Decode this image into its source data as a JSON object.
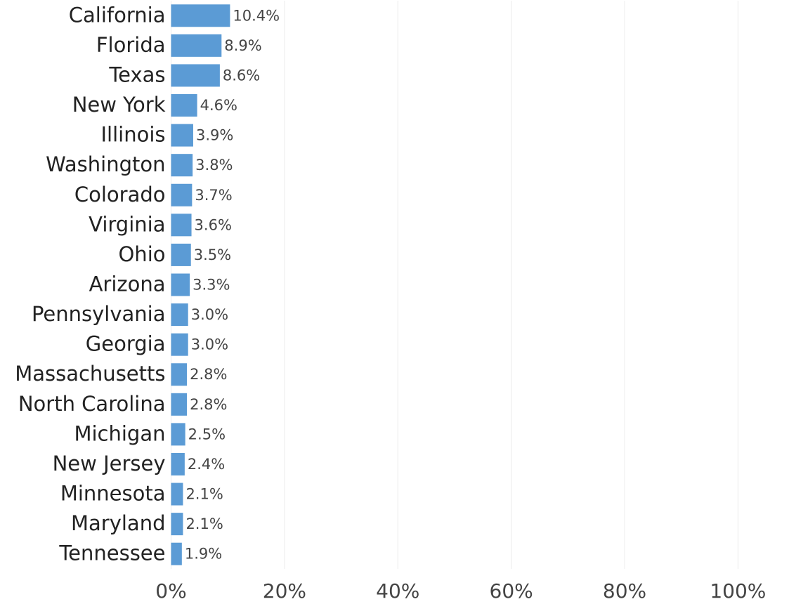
{
  "chart_data": {
    "type": "bar",
    "orientation": "horizontal",
    "categories": [
      "California",
      "Florida",
      "Texas",
      "New York",
      "Illinois",
      "Washington",
      "Colorado",
      "Virginia",
      "Ohio",
      "Arizona",
      "Pennsylvania",
      "Georgia",
      "Massachusetts",
      "North Carolina",
      "Michigan",
      "New Jersey",
      "Minnesota",
      "Maryland",
      "Tennessee"
    ],
    "values": [
      10.4,
      8.9,
      8.6,
      4.6,
      3.9,
      3.8,
      3.7,
      3.6,
      3.5,
      3.3,
      3.0,
      3.0,
      2.8,
      2.8,
      2.5,
      2.4,
      2.1,
      2.1,
      1.9
    ],
    "value_labels": [
      "10.4%",
      "8.9%",
      "8.6%",
      "4.6%",
      "3.9%",
      "3.8%",
      "3.7%",
      "3.6%",
      "3.5%",
      "3.3%",
      "3.0%",
      "3.0%",
      "2.8%",
      "2.8%",
      "2.5%",
      "2.4%",
      "2.1%",
      "2.1%",
      "1.9%"
    ],
    "color": "#5b9bd5",
    "xlim": [
      0,
      109
    ],
    "xticks": [
      {
        "value": 0,
        "label": "0%"
      },
      {
        "value": 20,
        "label": "20%"
      },
      {
        "value": 40,
        "label": "40%"
      },
      {
        "value": 60,
        "label": "60%"
      },
      {
        "value": 80,
        "label": "80%"
      },
      {
        "value": 100,
        "label": "100%"
      }
    ],
    "grid": true
  }
}
